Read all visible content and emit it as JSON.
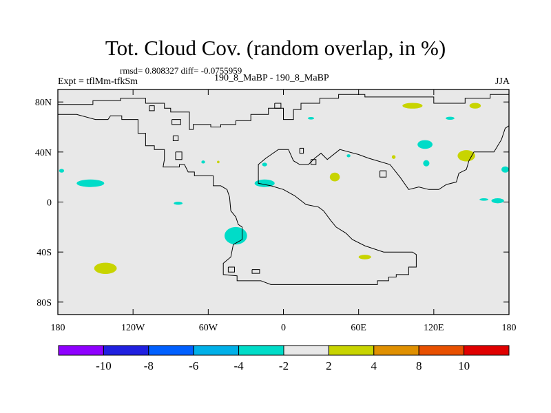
{
  "title": "Tot. Cloud Cov. (random overlap, in %)",
  "stats": "rmsd= 0.808327 diff= -0.0755959",
  "expt_label": "Expt = tflMm-tfkSm",
  "center_label": "190_8_MaBP - 190_8_MaBP",
  "season_label": "JJA",
  "chart_data": {
    "type": "heatmap",
    "map": "global difference map (paleogeography)",
    "x_axis": {
      "range": [
        -180,
        180
      ],
      "ticks": [
        {
          "value": -180,
          "label": "180"
        },
        {
          "value": -120,
          "label": "120W"
        },
        {
          "value": -60,
          "label": "60W"
        },
        {
          "value": 0,
          "label": "0"
        },
        {
          "value": 60,
          "label": "60E"
        },
        {
          "value": 120,
          "label": "120E"
        },
        {
          "value": 180,
          "label": "180"
        }
      ]
    },
    "y_axis": {
      "range": [
        -90,
        90
      ],
      "ticks": [
        {
          "value": 80,
          "label": "80N"
        },
        {
          "value": 40,
          "label": "40N"
        },
        {
          "value": 0,
          "label": "0"
        },
        {
          "value": -40,
          "label": "40S"
        },
        {
          "value": -80,
          "label": "80S"
        }
      ]
    },
    "colorbar": {
      "colors": [
        "#8f00ff",
        "#2020e0",
        "#0060ff",
        "#00b0e8",
        "#00dcc8",
        "#e8e8e8",
        "#c8d400",
        "#e09000",
        "#e85000",
        "#e00000"
      ],
      "labels": [
        "-10",
        "-8",
        "-6",
        "-4",
        "-2",
        "2",
        "4",
        "8",
        "10"
      ]
    },
    "field_patches": [
      {
        "lon": -154,
        "lat": 15,
        "rlon": 11,
        "rlat": 3,
        "color": "#00dcc8"
      },
      {
        "lon": -177,
        "lat": 25,
        "rlon": 2,
        "rlat": 1.5,
        "color": "#00dcc8"
      },
      {
        "lon": -84,
        "lat": -1,
        "rlon": 3.5,
        "rlat": 1.2,
        "color": "#00dcc8"
      },
      {
        "lon": -38,
        "lat": -27,
        "rlon": 9,
        "rlat": 7,
        "color": "#00dcc8"
      },
      {
        "lon": -15,
        "lat": 15,
        "rlon": 8,
        "rlat": 3,
        "color": "#00dcc8"
      },
      {
        "lon": -15,
        "lat": 30,
        "rlon": 2,
        "rlat": 1.5,
        "color": "#00dcc8"
      },
      {
        "lon": -64,
        "lat": 32,
        "rlon": 1.5,
        "rlat": 1.2,
        "color": "#00dcc8"
      },
      {
        "lon": 22,
        "lat": 67,
        "rlon": 2.5,
        "rlat": 1,
        "color": "#00dcc8"
      },
      {
        "lon": 113,
        "lat": 46,
        "rlon": 6,
        "rlat": 3.5,
        "color": "#00dcc8"
      },
      {
        "lon": 114,
        "lat": 31,
        "rlon": 2.5,
        "rlat": 2.5,
        "color": "#00dcc8"
      },
      {
        "lon": 133,
        "lat": 67,
        "rlon": 3.5,
        "rlat": 1.2,
        "color": "#00dcc8"
      },
      {
        "lon": 177,
        "lat": 26,
        "rlon": 3,
        "rlat": 2.5,
        "color": "#00dcc8"
      },
      {
        "lon": 160,
        "lat": 2,
        "rlon": 3.5,
        "rlat": 1,
        "color": "#00dcc8"
      },
      {
        "lon": 171,
        "lat": 1,
        "rlon": 5,
        "rlat": 2,
        "color": "#00dcc8"
      },
      {
        "lon": 52,
        "lat": 37,
        "rlon": 1.5,
        "rlat": 1.2,
        "color": "#00dcc8"
      },
      {
        "lon": 103,
        "lat": 77,
        "rlon": 8,
        "rlat": 2.3,
        "color": "#c8d400"
      },
      {
        "lon": 153,
        "lat": 77,
        "rlon": 4.5,
        "rlat": 2.3,
        "color": "#c8d400"
      },
      {
        "lon": 146,
        "lat": 37,
        "rlon": 7,
        "rlat": 4.5,
        "color": "#c8d400"
      },
      {
        "lon": 41,
        "lat": 20,
        "rlon": 4,
        "rlat": 3.5,
        "color": "#c8d400"
      },
      {
        "lon": 65,
        "lat": -44,
        "rlon": 5,
        "rlat": 1.8,
        "color": "#c8d400"
      },
      {
        "lon": -142,
        "lat": -53,
        "rlon": 9,
        "rlat": 4.5,
        "color": "#c8d400"
      },
      {
        "lon": 88,
        "lat": 36,
        "rlon": 1.5,
        "rlat": 1.5,
        "color": "#c8d400"
      },
      {
        "lon": -52,
        "lat": 32,
        "rlon": 1,
        "rlat": 1,
        "color": "#c8d400"
      }
    ],
    "coastline_lonlat": [
      [
        -180,
        90
      ],
      [
        -180,
        78
      ],
      [
        -152,
        78
      ],
      [
        -152,
        81
      ],
      [
        -130,
        81
      ],
      [
        -130,
        83
      ],
      [
        -110,
        83
      ],
      [
        -110,
        79
      ],
      [
        -95,
        79
      ],
      [
        -95,
        75
      ],
      [
        -90,
        75
      ],
      [
        -90,
        72
      ],
      [
        -75,
        72
      ],
      [
        -75,
        58
      ],
      [
        -72,
        58
      ],
      [
        -72,
        62
      ],
      [
        -58,
        62
      ],
      [
        -58,
        60
      ],
      [
        -50,
        60
      ],
      [
        -50,
        62
      ],
      [
        -38,
        62
      ],
      [
        -38,
        65
      ],
      [
        -26,
        65
      ],
      [
        -26,
        70
      ],
      [
        -12,
        70
      ],
      [
        -12,
        75
      ],
      [
        0,
        75
      ],
      [
        0,
        66
      ],
      [
        8,
        66
      ],
      [
        8,
        74
      ],
      [
        14,
        74
      ],
      [
        14,
        79
      ],
      [
        29,
        79
      ],
      [
        29,
        83
      ],
      [
        44,
        83
      ],
      [
        44,
        86
      ],
      [
        65,
        86
      ],
      [
        65,
        84
      ],
      [
        120,
        84
      ],
      [
        120,
        79
      ],
      [
        145,
        79
      ],
      [
        145,
        83
      ],
      [
        165,
        83
      ],
      [
        165,
        86
      ],
      [
        180,
        86
      ],
      [
        180,
        90
      ],
      [
        -180,
        90
      ]
    ],
    "landmass_lonlat": [
      [
        -180,
        70
      ],
      [
        -165,
        70
      ],
      [
        -150,
        66
      ],
      [
        -140,
        66
      ],
      [
        -138,
        69
      ],
      [
        -129,
        69
      ],
      [
        -129,
        66
      ],
      [
        -116,
        66
      ],
      [
        -116,
        55
      ],
      [
        -110,
        55
      ],
      [
        -110,
        45
      ],
      [
        -103,
        45
      ],
      [
        -103,
        42
      ],
      [
        -95,
        42
      ],
      [
        -95,
        34
      ],
      [
        -96,
        28
      ],
      [
        -83,
        28
      ],
      [
        -83,
        30
      ],
      [
        -79,
        30
      ],
      [
        -76,
        24
      ],
      [
        -71,
        24
      ],
      [
        -71,
        21
      ],
      [
        -56,
        21
      ],
      [
        -56,
        13
      ],
      [
        -50,
        13
      ],
      [
        -45,
        10
      ],
      [
        -43,
        4
      ],
      [
        -42,
        -7
      ],
      [
        -38,
        -12
      ],
      [
        -36,
        -18
      ],
      [
        -33,
        -20
      ],
      [
        -33,
        -30
      ],
      [
        -40,
        -34
      ],
      [
        -42,
        -44
      ],
      [
        -48,
        -49
      ],
      [
        -48,
        -58
      ],
      [
        -37,
        -59
      ],
      [
        -37,
        -63
      ],
      [
        -18,
        -63
      ],
      [
        -10,
        -66
      ],
      [
        5,
        -66
      ],
      [
        20,
        -66
      ],
      [
        40,
        -66
      ],
      [
        75,
        -66
      ],
      [
        75,
        -63
      ],
      [
        84,
        -63
      ],
      [
        84,
        -60
      ],
      [
        90,
        -60
      ],
      [
        90,
        -58
      ],
      [
        100,
        -58
      ],
      [
        100,
        -52
      ],
      [
        106,
        -52
      ],
      [
        106,
        -42
      ],
      [
        103,
        -40
      ],
      [
        80,
        -40
      ],
      [
        65,
        -35
      ],
      [
        55,
        -30
      ],
      [
        50,
        -25
      ],
      [
        42,
        -20
      ],
      [
        38,
        -15
      ],
      [
        32,
        -7
      ],
      [
        28,
        -4
      ],
      [
        18,
        -2
      ],
      [
        9,
        5
      ],
      [
        0,
        10
      ],
      [
        -10,
        13
      ],
      [
        -20,
        15
      ],
      [
        -20,
        30
      ],
      [
        -14,
        35
      ],
      [
        -4,
        42
      ],
      [
        4,
        42
      ],
      [
        8,
        33
      ],
      [
        13,
        30
      ],
      [
        20,
        30
      ],
      [
        25,
        35
      ],
      [
        30,
        39
      ],
      [
        35,
        34
      ],
      [
        45,
        42
      ],
      [
        60,
        38
      ],
      [
        68,
        35
      ],
      [
        85,
        30
      ],
      [
        93,
        20
      ],
      [
        100,
        10
      ],
      [
        108,
        12
      ],
      [
        116,
        10
      ],
      [
        124,
        10
      ],
      [
        130,
        14
      ],
      [
        138,
        16
      ],
      [
        140,
        23
      ],
      [
        146,
        26
      ],
      [
        148,
        33
      ],
      [
        152,
        40
      ],
      [
        168,
        40
      ],
      [
        174,
        50
      ],
      [
        177,
        59
      ],
      [
        180,
        61
      ]
    ],
    "island_outlines": [
      [
        [
          -107,
          77
        ],
        [
          -107,
          73
        ],
        [
          -103,
          73
        ],
        [
          -103,
          77
        ],
        [
          -107,
          77
        ]
      ],
      [
        [
          -89,
          66
        ],
        [
          -89,
          62
        ],
        [
          -82,
          62
        ],
        [
          -82,
          66
        ],
        [
          -89,
          66
        ]
      ],
      [
        [
          -88,
          53
        ],
        [
          -88,
          49
        ],
        [
          -84,
          49
        ],
        [
          -84,
          53
        ],
        [
          -88,
          53
        ]
      ],
      [
        [
          -86,
          40
        ],
        [
          -86,
          34
        ],
        [
          -81,
          34
        ],
        [
          -81,
          40
        ],
        [
          -86,
          40
        ]
      ],
      [
        [
          -7,
          79
        ],
        [
          -7,
          75
        ],
        [
          -2,
          75
        ],
        [
          -2,
          79
        ],
        [
          -7,
          79
        ]
      ],
      [
        [
          13,
          43
        ],
        [
          13,
          39
        ],
        [
          16,
          39
        ],
        [
          16,
          43
        ],
        [
          13,
          43
        ]
      ],
      [
        [
          22,
          34
        ],
        [
          22,
          30
        ],
        [
          26,
          30
        ],
        [
          26,
          34
        ],
        [
          22,
          34
        ]
      ],
      [
        [
          77,
          25
        ],
        [
          77,
          20
        ],
        [
          82,
          20
        ],
        [
          82,
          25
        ],
        [
          77,
          25
        ]
      ],
      [
        [
          -44,
          -52
        ],
        [
          -44,
          -56
        ],
        [
          -39,
          -56
        ],
        [
          -39,
          -52
        ],
        [
          -44,
          -52
        ]
      ],
      [
        [
          -25,
          -54
        ],
        [
          -25,
          -57
        ],
        [
          -19,
          -57
        ],
        [
          -19,
          -54
        ],
        [
          -25,
          -54
        ]
      ]
    ]
  }
}
